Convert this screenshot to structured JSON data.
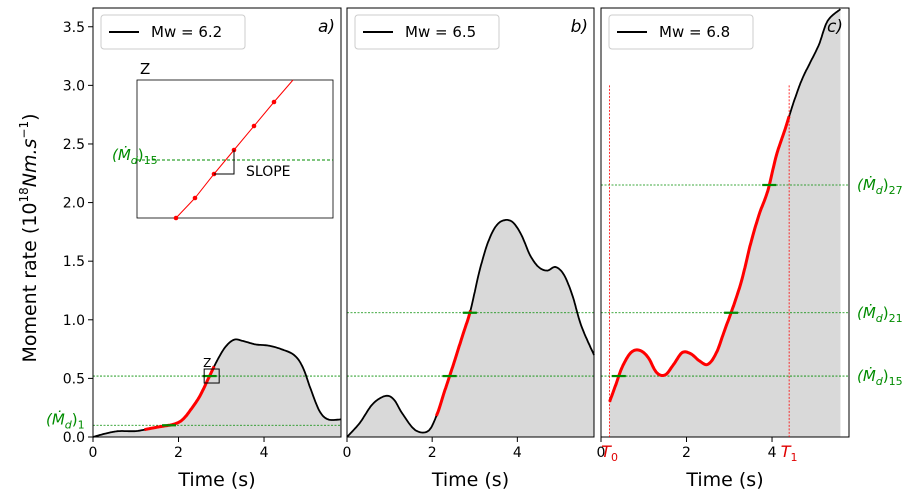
{
  "colors": {
    "signal": "#000000",
    "fill": "#d9d9d9",
    "highlight": "#ff0000",
    "level": "#008c00",
    "marker": "#e00000"
  },
  "ylabel": "Moment rate (10",
  "ylabel_sup": "18",
  "ylabel_unit": "Nm.s",
  "ylabel_sup2": "−1",
  "ylabel_close": ")",
  "yticks": [
    "0.0",
    "0.5",
    "1.0",
    "1.5",
    "2.0",
    "2.5",
    "3.0",
    "3.5"
  ],
  "inset": {
    "label": "Z",
    "level_label": "(Ṁ",
    "level_sub": "d",
    "level_close": ")",
    "level_sub2": "15",
    "slope_label": "SLOPE"
  },
  "chart_data": [
    {
      "type": "line",
      "panel_letter": "a)",
      "legend": "Mw = 6.2",
      "xlabel": "Time (s)",
      "ylabel": "Moment rate (10^18 Nm.s^-1)",
      "xlim": [
        0,
        5.8
      ],
      "ylim": [
        0,
        3.66
      ],
      "xticks": [
        "0",
        "2",
        "4"
      ],
      "zoom_box_label": "Z",
      "levels": [
        0.1,
        0.52
      ],
      "level_label_main": "(Ṁ",
      "level_label_sub": "d",
      "level_label_close": ")",
      "level_label_index": "1",
      "x": [
        0,
        0.3,
        0.6,
        1.0,
        1.3,
        1.6,
        1.9,
        2.1,
        2.3,
        2.5,
        2.7,
        2.9,
        3.1,
        3.3,
        3.5,
        3.8,
        4.1,
        4.4,
        4.7,
        4.9,
        5.1,
        5.3,
        5.5,
        5.8
      ],
      "y": [
        0.0,
        0.03,
        0.05,
        0.05,
        0.07,
        0.09,
        0.11,
        0.15,
        0.24,
        0.35,
        0.5,
        0.65,
        0.77,
        0.83,
        0.82,
        0.79,
        0.78,
        0.75,
        0.7,
        0.6,
        0.4,
        0.22,
        0.15,
        0.15
      ],
      "highlight_range": [
        1.2,
        2.85
      ]
    },
    {
      "type": "line",
      "panel_letter": "b)",
      "legend": "Mw = 6.5",
      "xlabel": "Time (s)",
      "xlim": [
        0,
        5.8
      ],
      "ylim": [
        0,
        3.66
      ],
      "xticks": [
        "0",
        "2",
        "4"
      ],
      "levels": [
        0.52,
        1.06
      ],
      "x": [
        0,
        0.3,
        0.6,
        0.9,
        1.1,
        1.3,
        1.6,
        1.9,
        2.1,
        2.3,
        2.5,
        2.7,
        2.9,
        3.1,
        3.3,
        3.5,
        3.7,
        3.9,
        4.1,
        4.3,
        4.5,
        4.7,
        4.9,
        5.1,
        5.3,
        5.5,
        5.8
      ],
      "y": [
        0.0,
        0.12,
        0.28,
        0.35,
        0.32,
        0.2,
        0.06,
        0.05,
        0.18,
        0.4,
        0.62,
        0.85,
        1.08,
        1.4,
        1.65,
        1.8,
        1.85,
        1.83,
        1.72,
        1.55,
        1.45,
        1.42,
        1.45,
        1.38,
        1.2,
        0.95,
        0.7
      ],
      "highlight_range": [
        2.1,
        2.9
      ]
    },
    {
      "type": "line",
      "panel_letter": "c)",
      "legend": "Mw = 6.8",
      "xlabel": "Time (s)",
      "xlim": [
        0,
        5.8
      ],
      "ylim": [
        0,
        3.66
      ],
      "xticks": [
        "0",
        "2",
        "4"
      ],
      "levels": [
        0.52,
        1.06,
        2.15
      ],
      "level_labels": [
        {
          "main": "(Ṁ",
          "sub": "d",
          "close": ")",
          "index": "15"
        },
        {
          "main": "(Ṁ",
          "sub": "d",
          "close": ")",
          "index": "21"
        },
        {
          "main": "(Ṁ",
          "sub": "d",
          "close": ")",
          "index": "27"
        }
      ],
      "x": [
        0.2,
        0.35,
        0.5,
        0.7,
        0.9,
        1.1,
        1.3,
        1.5,
        1.7,
        1.9,
        2.1,
        2.3,
        2.5,
        2.7,
        2.9,
        3.1,
        3.3,
        3.5,
        3.7,
        3.9,
        4.1,
        4.3,
        4.5,
        4.7,
        4.9,
        5.1,
        5.3,
        5.6
      ],
      "y": [
        0.3,
        0.45,
        0.6,
        0.72,
        0.74,
        0.68,
        0.55,
        0.53,
        0.62,
        0.72,
        0.71,
        0.65,
        0.62,
        0.72,
        0.92,
        1.12,
        1.35,
        1.65,
        1.9,
        2.1,
        2.4,
        2.62,
        2.85,
        3.05,
        3.2,
        3.35,
        3.55,
        3.65
      ],
      "highlight_range": [
        0.2,
        4.4
      ],
      "markers": [
        {
          "label": "T",
          "sub": "0",
          "x": 0.2
        },
        {
          "label": "T",
          "sub": "1",
          "x": 4.4
        }
      ]
    }
  ]
}
